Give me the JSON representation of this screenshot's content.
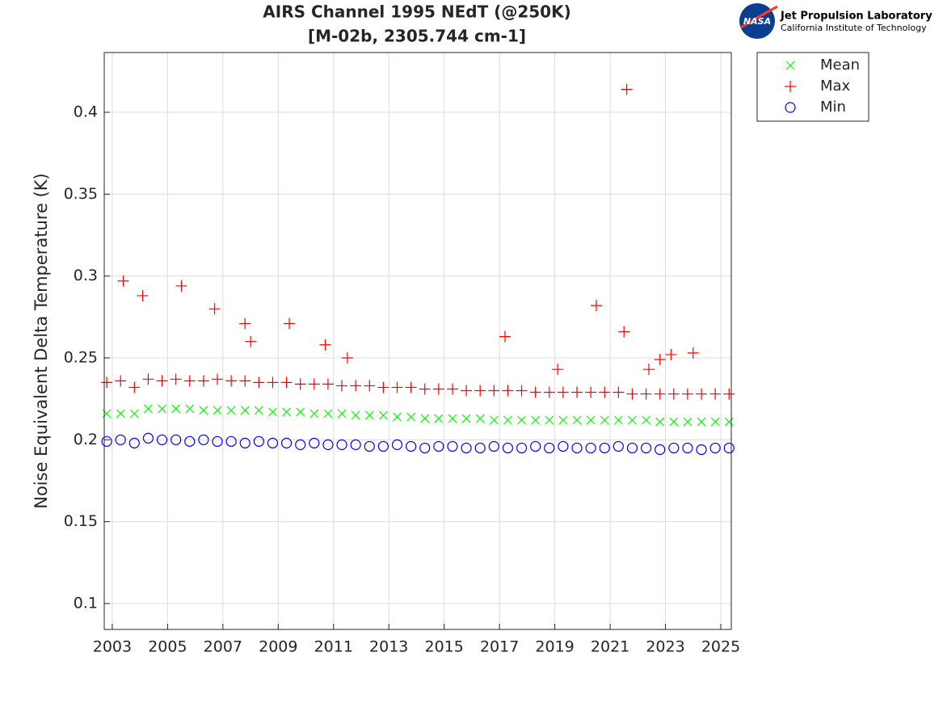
{
  "chart_data": {
    "type": "scatter",
    "title": "AIRS Channel 1995 NEdT (@250K)",
    "subtitle": "[M-02b, 2305.744 cm-1]",
    "y_label": "Noise Equivalent Delta Temperature (K)",
    "xlim": [
      2002.71,
      2025.38
    ],
    "ylim": [
      0.0842,
      0.4365
    ],
    "xticks": [
      2003,
      2005,
      2007,
      2009,
      2011,
      2013,
      2015,
      2017,
      2019,
      2021,
      2023,
      2025
    ],
    "yticks": [
      0.1,
      0.15,
      0.2,
      0.25,
      0.3,
      0.35,
      0.4
    ],
    "grid": true,
    "legend": "outside-right",
    "series": [
      {
        "name": "Mean",
        "color": "#00ff00",
        "marker": "x",
        "x": [
          2002.8,
          2003.3,
          2003.8,
          2004.3,
          2004.8,
          2005.3,
          2005.8,
          2006.3,
          2006.8,
          2007.3,
          2007.8,
          2008.3,
          2008.8,
          2009.3,
          2009.8,
          2010.3,
          2010.8,
          2011.3,
          2011.8,
          2012.3,
          2012.8,
          2013.3,
          2013.8,
          2014.3,
          2014.8,
          2015.3,
          2015.8,
          2016.3,
          2016.8,
          2017.3,
          2017.8,
          2018.3,
          2018.8,
          2019.3,
          2019.8,
          2020.3,
          2020.8,
          2021.3,
          2021.8,
          2022.3,
          2022.8,
          2023.3,
          2023.8,
          2024.3,
          2024.8,
          2025.3
        ],
        "values": [
          0.216,
          0.216,
          0.216,
          0.219,
          0.219,
          0.219,
          0.219,
          0.218,
          0.218,
          0.218,
          0.218,
          0.218,
          0.217,
          0.217,
          0.217,
          0.216,
          0.216,
          0.216,
          0.215,
          0.215,
          0.215,
          0.214,
          0.214,
          0.213,
          0.213,
          0.213,
          0.213,
          0.213,
          0.212,
          0.212,
          0.212,
          0.212,
          0.212,
          0.212,
          0.212,
          0.212,
          0.212,
          0.212,
          0.212,
          0.212,
          0.211,
          0.211,
          0.211,
          0.211,
          0.211,
          0.211
        ]
      },
      {
        "name": "Max",
        "color": "#ff0000",
        "marker": "+",
        "x": [
          2002.8,
          2003.3,
          2003.8,
          2004.3,
          2004.8,
          2005.3,
          2005.8,
          2006.3,
          2006.8,
          2007.3,
          2007.8,
          2008.3,
          2008.8,
          2009.3,
          2009.8,
          2010.3,
          2010.8,
          2011.3,
          2011.8,
          2012.3,
          2012.8,
          2013.3,
          2013.8,
          2014.3,
          2014.8,
          2015.3,
          2015.8,
          2016.3,
          2016.8,
          2017.3,
          2017.8,
          2018.3,
          2018.8,
          2019.3,
          2019.8,
          2020.3,
          2020.8,
          2021.3,
          2021.8,
          2022.3,
          2022.8,
          2023.3,
          2023.8,
          2024.3,
          2024.8,
          2025.3,
          2003.4,
          2004.1,
          2005.5,
          2006.7,
          2007.8,
          2008.0,
          2009.4,
          2010.7,
          2011.5,
          2017.2,
          2020.5,
          2021.5,
          2021.6,
          2022.8,
          2023.2,
          2024.0,
          2022.4,
          2019.1
        ],
        "values": [
          0.235,
          0.236,
          0.232,
          0.237,
          0.236,
          0.237,
          0.236,
          0.236,
          0.237,
          0.236,
          0.236,
          0.235,
          0.235,
          0.235,
          0.234,
          0.234,
          0.234,
          0.233,
          0.233,
          0.233,
          0.232,
          0.232,
          0.232,
          0.231,
          0.231,
          0.231,
          0.23,
          0.23,
          0.23,
          0.23,
          0.23,
          0.229,
          0.229,
          0.229,
          0.229,
          0.229,
          0.229,
          0.229,
          0.228,
          0.228,
          0.228,
          0.228,
          0.228,
          0.228,
          0.228,
          0.228,
          0.297,
          0.288,
          0.294,
          0.28,
          0.271,
          0.26,
          0.271,
          0.258,
          0.25,
          0.263,
          0.282,
          0.266,
          0.414,
          0.249,
          0.252,
          0.253,
          0.243,
          0.243
        ]
      },
      {
        "name": "Min",
        "color": "#0000ff",
        "marker": "o",
        "x": [
          2002.8,
          2003.3,
          2003.8,
          2004.3,
          2004.8,
          2005.3,
          2005.8,
          2006.3,
          2006.8,
          2007.3,
          2007.8,
          2008.3,
          2008.8,
          2009.3,
          2009.8,
          2010.3,
          2010.8,
          2011.3,
          2011.8,
          2012.3,
          2012.8,
          2013.3,
          2013.8,
          2014.3,
          2014.8,
          2015.3,
          2015.8,
          2016.3,
          2016.8,
          2017.3,
          2017.8,
          2018.3,
          2018.8,
          2019.3,
          2019.8,
          2020.3,
          2020.8,
          2021.3,
          2021.8,
          2022.3,
          2022.8,
          2023.3,
          2023.8,
          2024.3,
          2024.8,
          2025.3
        ],
        "values": [
          0.199,
          0.2,
          0.198,
          0.201,
          0.2,
          0.2,
          0.199,
          0.2,
          0.199,
          0.199,
          0.198,
          0.199,
          0.198,
          0.198,
          0.197,
          0.198,
          0.197,
          0.197,
          0.197,
          0.196,
          0.196,
          0.197,
          0.196,
          0.195,
          0.196,
          0.196,
          0.195,
          0.195,
          0.196,
          0.195,
          0.195,
          0.196,
          0.195,
          0.196,
          0.195,
          0.195,
          0.195,
          0.196,
          0.195,
          0.195,
          0.194,
          0.195,
          0.195,
          0.194,
          0.195,
          0.195
        ]
      }
    ]
  },
  "logo": {
    "badge": "NASA",
    "name": "Jet Propulsion Laboratory",
    "institute": "California Institute of Technology"
  }
}
